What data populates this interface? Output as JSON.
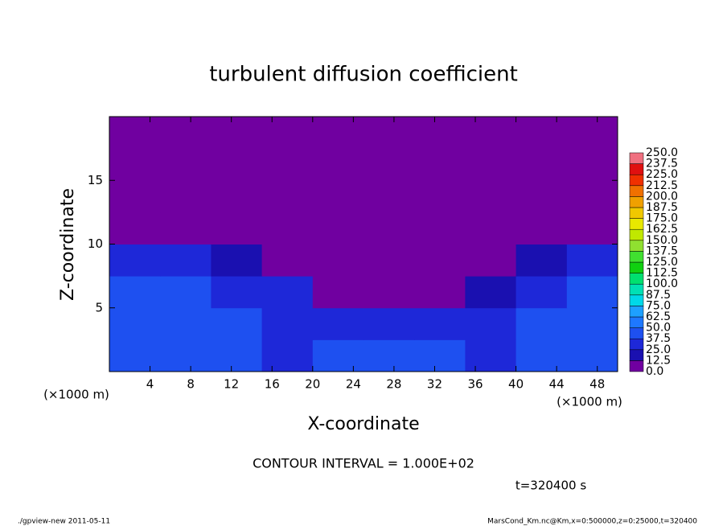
{
  "chart_data": {
    "type": "heatmap",
    "title": "turbulent diffusion coefficient",
    "x_label": "X-coordinate",
    "y_label": "Z-coordinate",
    "x_unit_left": "(×1000 m)",
    "x_unit_right": "(×1000 m)",
    "contour_interval": "CONTOUR INTERVAL = 1.000E+02",
    "time_label": "t=320400 s",
    "xlim": [
      0,
      50
    ],
    "ylim": [
      0,
      20
    ],
    "xticks": [
      4,
      8,
      12,
      16,
      20,
      24,
      28,
      32,
      36,
      40,
      44,
      48
    ],
    "yticks": [
      5,
      10,
      15
    ],
    "x_edges": [
      0,
      5,
      10,
      15,
      20,
      25,
      30,
      35,
      40,
      45,
      50
    ],
    "z_edges": [
      0,
      2.5,
      5,
      7.5,
      10,
      12.5,
      15,
      17.5,
      20
    ],
    "values": [
      [
        45,
        40,
        40,
        35,
        40,
        45,
        40,
        35,
        40,
        45
      ],
      [
        40,
        45,
        40,
        35,
        30,
        25,
        30,
        30,
        40,
        40
      ],
      [
        45,
        40,
        35,
        25,
        10,
        10,
        10,
        20,
        35,
        40
      ],
      [
        30,
        30,
        20,
        5,
        0,
        0,
        0,
        5,
        20,
        30
      ],
      [
        5,
        0,
        0,
        0,
        0,
        0,
        0,
        0,
        0,
        0
      ],
      [
        0,
        0,
        0,
        0,
        0,
        0,
        0,
        0,
        0,
        0
      ],
      [
        0,
        0,
        0,
        0,
        0,
        0,
        0,
        0,
        0,
        0
      ],
      [
        0,
        0,
        0,
        0,
        0,
        0,
        0,
        0,
        0,
        0
      ]
    ],
    "colorbar": {
      "levels": [
        {
          "value": 0,
          "label": "0.0"
        },
        {
          "value": 12.5,
          "label": "12.5"
        },
        {
          "value": 25,
          "label": "25.0"
        },
        {
          "value": 37.5,
          "label": "37.5"
        },
        {
          "value": 50,
          "label": "50.0"
        },
        {
          "value": 62.5,
          "label": "62.5"
        },
        {
          "value": 75,
          "label": "75.0"
        },
        {
          "value": 87.5,
          "label": "87.5"
        },
        {
          "value": 100,
          "label": "100.0"
        },
        {
          "value": 112.5,
          "label": "112.5"
        },
        {
          "value": 125,
          "label": "125.0"
        },
        {
          "value": 137.5,
          "label": "137.5"
        },
        {
          "value": 150,
          "label": "150.0"
        },
        {
          "value": 162.5,
          "label": "162.5"
        },
        {
          "value": 175,
          "label": "175.0"
        },
        {
          "value": 187.5,
          "label": "187.5"
        },
        {
          "value": 200,
          "label": "200.0"
        },
        {
          "value": 212.5,
          "label": "212.5"
        },
        {
          "value": 225,
          "label": "225.0"
        },
        {
          "value": 237.5,
          "label": "237.5"
        },
        {
          "value": 250,
          "label": "250.0"
        }
      ],
      "colors": [
        "#7000a0",
        "#1a10b0",
        "#1e28d8",
        "#1e50f0",
        "#1e78ff",
        "#1ea0ff",
        "#00d8e8",
        "#00e0b4",
        "#00e070",
        "#10d010",
        "#40e030",
        "#90e030",
        "#c0e800",
        "#e8e800",
        "#f0c800",
        "#f0a000",
        "#f07000",
        "#f03000",
        "#e01010",
        "#f07080"
      ]
    }
  },
  "footer": {
    "left": "./gpview-new   2011-05-11",
    "right": "MarsCond_Km.nc@Km,x=0:500000,z=0:25000,t=320400"
  }
}
